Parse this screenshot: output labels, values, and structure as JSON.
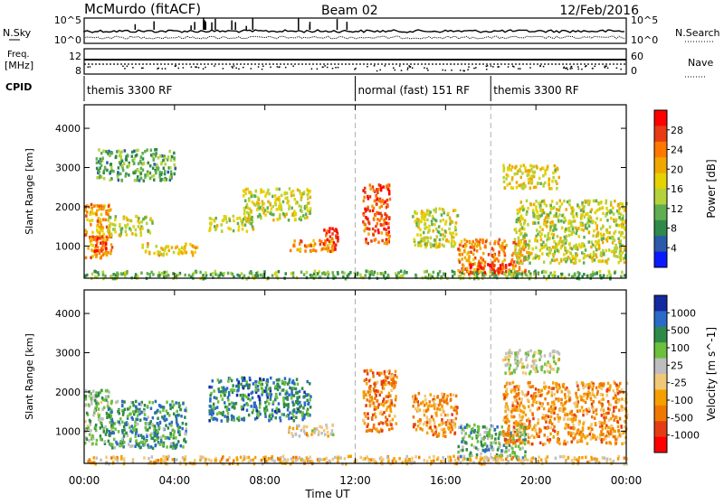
{
  "header": {
    "station": "McMurdo (fitACF)",
    "beam": "Beam 02",
    "date": "12/Feb/2016"
  },
  "summary": {
    "nsky_label": "N.Sky",
    "nsearch_label": "N.Search",
    "freq_label_line1": "Freq.",
    "freq_label_line2": "[MHz]",
    "nave_label": "Nave",
    "cpid_label": "CPID",
    "noise_left_ticks": [
      "10^5",
      "10^0"
    ],
    "noise_right_ticks": [
      "10^5",
      "10^0"
    ],
    "freq_ticks": [
      "12",
      "8"
    ],
    "nave_ticks": [
      "60",
      "0"
    ]
  },
  "cpid_segments": [
    {
      "label": "themis 3300 RF",
      "start_hour": 0,
      "end_hour": 12
    },
    {
      "label": "normal (fast) 151 RF",
      "start_hour": 12,
      "end_hour": 18
    },
    {
      "label": "themis 3300 RF",
      "start_hour": 18,
      "end_hour": 24
    }
  ],
  "x_axis": {
    "title": "Time UT",
    "ticks": [
      "00:00",
      "04:00",
      "08:00",
      "12:00",
      "16:00",
      "20:00",
      "00:00"
    ],
    "range_hours": [
      0,
      24
    ]
  },
  "chart_data": [
    {
      "type": "heatmap",
      "name": "Power",
      "ylabel": "Slant Range [km]",
      "yticks": [
        1000,
        2000,
        3000,
        4000
      ],
      "ylim": [
        180,
        4600
      ],
      "colorbar_label": "Power [dB]",
      "colorbar_ticks": [
        "28",
        "24",
        "20",
        "16",
        "12",
        "8",
        "4"
      ],
      "colorbar_colors": [
        "#ff0000",
        "#e83c14",
        "#ff7800",
        "#f0a800",
        "#e6d200",
        "#b4d23c",
        "#5fae50",
        "#2f8a4a",
        "#2a5aa8",
        "#0a1aff"
      ],
      "regions": [
        {
          "t0": 0.0,
          "t1": 1.2,
          "r0": 700,
          "r1": 2100,
          "level": 0.7
        },
        {
          "t0": 0.2,
          "t1": 1.0,
          "r0": 900,
          "r1": 1300,
          "level": 0.9
        },
        {
          "t0": 1.0,
          "t1": 3.0,
          "r0": 1300,
          "r1": 1800,
          "level": 0.5
        },
        {
          "t0": 2.5,
          "t1": 5.0,
          "r0": 800,
          "r1": 1100,
          "level": 0.6
        },
        {
          "t0": 5.5,
          "t1": 7.5,
          "r0": 1400,
          "r1": 1800,
          "level": 0.45
        },
        {
          "t0": 7.0,
          "t1": 10.0,
          "r0": 1700,
          "r1": 2500,
          "level": 0.5
        },
        {
          "t0": 9.0,
          "t1": 11.0,
          "r0": 900,
          "r1": 1200,
          "level": 0.7
        },
        {
          "t0": 10.5,
          "t1": 11.2,
          "r0": 900,
          "r1": 1500,
          "level": 0.9
        },
        {
          "t0": 12.3,
          "t1": 13.5,
          "r0": 1100,
          "r1": 2600,
          "level": 0.85
        },
        {
          "t0": 14.5,
          "t1": 16.5,
          "r0": 1000,
          "r1": 2000,
          "level": 0.5
        },
        {
          "t0": 16.5,
          "t1": 19.5,
          "r0": 300,
          "r1": 1200,
          "level": 0.75
        },
        {
          "t0": 17.0,
          "t1": 19.0,
          "r0": 350,
          "r1": 600,
          "level": 1.0
        },
        {
          "t0": 19.0,
          "t1": 24.0,
          "r0": 600,
          "r1": 2200,
          "level": 0.5
        },
        {
          "t0": 18.5,
          "t1": 21.0,
          "r0": 2500,
          "r1": 3100,
          "level": 0.55
        },
        {
          "t0": 0.0,
          "t1": 24.0,
          "r0": 200,
          "r1": 400,
          "level": 0.35
        },
        {
          "t0": 0.5,
          "t1": 4.0,
          "r0": 2700,
          "r1": 3500,
          "level": 0.3
        }
      ]
    },
    {
      "type": "heatmap",
      "name": "Velocity",
      "ylabel": "Slant Range [km]",
      "yticks": [
        1000,
        2000,
        3000,
        4000
      ],
      "ylim": [
        180,
        4600
      ],
      "colorbar_label": "Velocity [m s^-1]",
      "colorbar_ticks": [
        "1000",
        "500",
        "100",
        "25",
        "-25",
        "-100",
        "-500",
        "-1000"
      ],
      "colorbar_colors": [
        "#1428a0",
        "#2a6ac8",
        "#2f8a4a",
        "#6cc03c",
        "#bebebe",
        "#f0c878",
        "#f5a000",
        "#f07800",
        "#e63c14",
        "#ff0000"
      ],
      "regions": [
        {
          "t0": 0.0,
          "t1": 1.2,
          "r0": 700,
          "r1": 2100,
          "level": 0.35
        },
        {
          "t0": 1.0,
          "t1": 4.5,
          "r0": 600,
          "r1": 1800,
          "level": 0.25
        },
        {
          "t0": 5.5,
          "t1": 10.0,
          "r0": 1300,
          "r1": 2400,
          "level": 0.2
        },
        {
          "t0": 9.0,
          "t1": 11.0,
          "r0": 900,
          "r1": 1200,
          "level": 0.55
        },
        {
          "t0": 12.3,
          "t1": 13.8,
          "r0": 1000,
          "r1": 2600,
          "level": 0.75
        },
        {
          "t0": 14.5,
          "t1": 16.5,
          "r0": 900,
          "r1": 2000,
          "level": 0.7
        },
        {
          "t0": 16.5,
          "t1": 19.5,
          "r0": 300,
          "r1": 1200,
          "level": 0.3
        },
        {
          "t0": 18.5,
          "t1": 24.0,
          "r0": 700,
          "r1": 2300,
          "level": 0.7
        },
        {
          "t0": 0.0,
          "t1": 24.0,
          "r0": 200,
          "r1": 400,
          "level": 0.6
        },
        {
          "t0": 18.5,
          "t1": 21.0,
          "r0": 2500,
          "r1": 3100,
          "level": 0.45
        }
      ]
    }
  ],
  "colors": {
    "frame": "#000000",
    "dashed_divider": "#b0b0b0",
    "background": "#ffffff"
  }
}
